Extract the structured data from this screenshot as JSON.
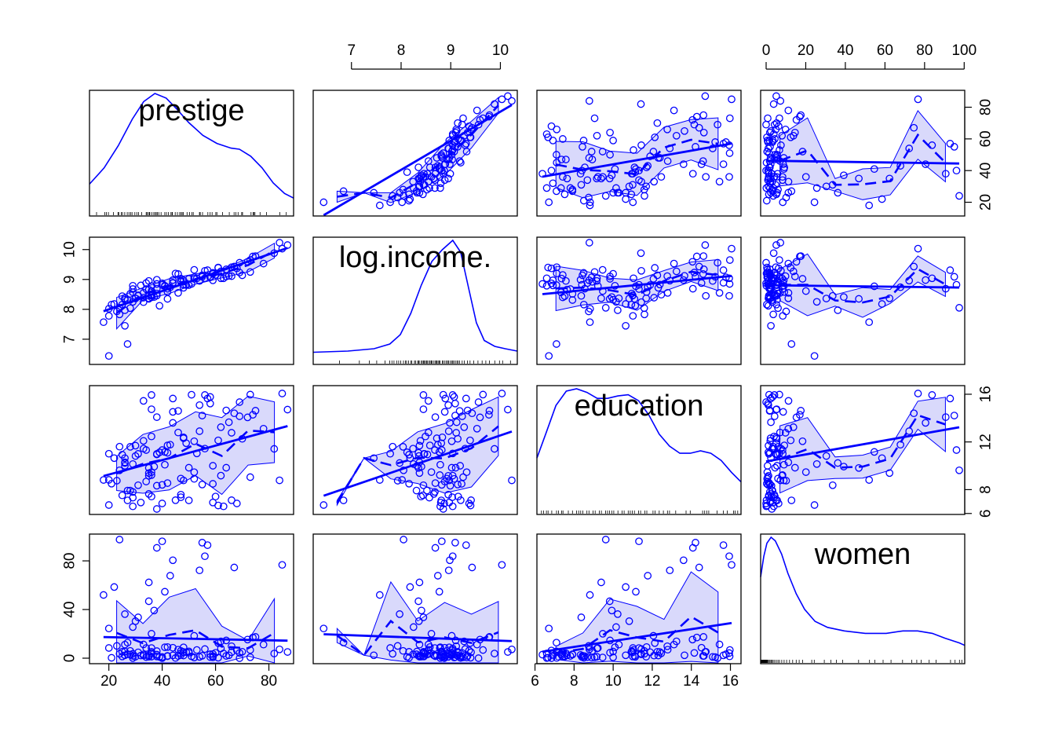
{
  "title": "",
  "variables": [
    "prestige",
    "log.income.",
    "education",
    "women"
  ],
  "colors": {
    "points": "#0000ff",
    "band_fill": "#d9d9fb",
    "axes": "#000000",
    "rug": "#000000"
  },
  "chart_data": {
    "type": "scatter-matrix",
    "ranges": {
      "prestige": [
        14.8,
        87.2
      ],
      "log.income.": [
        6.34,
        10.23
      ],
      "education": [
        6.38,
        16.26
      ],
      "women": [
        0,
        97.5
      ]
    },
    "ticks": {
      "prestige": [
        "20",
        "40",
        "60",
        "80"
      ],
      "log.income.": [
        "7",
        "8",
        "9",
        "10"
      ],
      "education": [
        "6",
        "8",
        "10",
        "12",
        "14",
        "16"
      ],
      "education_right": [
        "6",
        "8",
        "12",
        "16"
      ],
      "women": [
        "0",
        "20",
        "40",
        "60",
        "80",
        "100"
      ],
      "women_left": [
        "0",
        "40",
        "80"
      ]
    },
    "axis_layout": {
      "top": [
        null,
        "log.income.",
        null,
        "women"
      ],
      "bottom": [
        "prestige",
        null,
        "education",
        null
      ],
      "left": [
        null,
        "log.income.",
        null,
        "women"
      ],
      "right": [
        "prestige",
        null,
        "education",
        null
      ]
    },
    "density": {
      "prestige": [
        [
          14.8,
          0.22
        ],
        [
          20,
          0.36
        ],
        [
          25,
          0.55
        ],
        [
          30,
          0.78
        ],
        [
          34,
          0.93
        ],
        [
          38,
          1.0
        ],
        [
          42,
          0.96
        ],
        [
          46,
          0.86
        ],
        [
          50,
          0.75
        ],
        [
          55,
          0.64
        ],
        [
          60,
          0.57
        ],
        [
          65,
          0.53
        ],
        [
          68,
          0.52
        ],
        [
          72,
          0.46
        ],
        [
          76,
          0.36
        ],
        [
          80,
          0.23
        ],
        [
          84,
          0.14
        ],
        [
          87.2,
          0.1
        ]
      ],
      "log.income.": [
        [
          6.34,
          0.05
        ],
        [
          7,
          0.06
        ],
        [
          7.5,
          0.08
        ],
        [
          7.8,
          0.12
        ],
        [
          8.0,
          0.2
        ],
        [
          8.2,
          0.38
        ],
        [
          8.4,
          0.62
        ],
        [
          8.6,
          0.82
        ],
        [
          8.8,
          0.92
        ],
        [
          9.0,
          1.0
        ],
        [
          9.15,
          0.9
        ],
        [
          9.3,
          0.6
        ],
        [
          9.45,
          0.3
        ],
        [
          9.6,
          0.15
        ],
        [
          9.8,
          0.1
        ],
        [
          10.0,
          0.08
        ],
        [
          10.23,
          0.06
        ]
      ],
      "education": [
        [
          6.38,
          0.42
        ],
        [
          6.8,
          0.62
        ],
        [
          7.3,
          0.86
        ],
        [
          7.8,
          0.98
        ],
        [
          8.3,
          1.0
        ],
        [
          8.8,
          0.97
        ],
        [
          9.3,
          0.92
        ],
        [
          9.8,
          0.92
        ],
        [
          10.3,
          0.94
        ],
        [
          10.8,
          0.95
        ],
        [
          11.3,
          0.9
        ],
        [
          11.8,
          0.78
        ],
        [
          12.3,
          0.62
        ],
        [
          12.8,
          0.52
        ],
        [
          13.3,
          0.46
        ],
        [
          13.8,
          0.46
        ],
        [
          14.3,
          0.48
        ],
        [
          14.8,
          0.46
        ],
        [
          15.3,
          0.4
        ],
        [
          15.8,
          0.3
        ],
        [
          16.26,
          0.22
        ]
      ],
      "women": [
        [
          0,
          0.67
        ],
        [
          1.5,
          0.84
        ],
        [
          3,
          0.95
        ],
        [
          5,
          1.0
        ],
        [
          7,
          0.97
        ],
        [
          10,
          0.86
        ],
        [
          13,
          0.7
        ],
        [
          17,
          0.53
        ],
        [
          21,
          0.4
        ],
        [
          26,
          0.3
        ],
        [
          32,
          0.25
        ],
        [
          40,
          0.22
        ],
        [
          50,
          0.2
        ],
        [
          60,
          0.2
        ],
        [
          68,
          0.22
        ],
        [
          75,
          0.22
        ],
        [
          82,
          0.2
        ],
        [
          88,
          0.16
        ],
        [
          95,
          0.12
        ],
        [
          97.5,
          0.1
        ]
      ]
    },
    "rug": {
      "prestige": [
        14.8,
        17.3,
        20.2,
        20.8,
        21.5,
        23.3,
        24.9,
        25.2,
        26.1,
        26.5,
        27.3,
        28.2,
        28.8,
        29.4,
        29.9,
        30.9,
        31.6,
        32.2,
        33.3,
        34.9,
        35.2,
        35.7,
        36.1,
        36.2,
        36.9,
        37.6,
        38.1,
        38.5,
        38.9,
        39.4,
        40.2,
        41.5,
        42.1,
        42.8,
        43.7,
        44.1,
        44.2,
        45.2,
        46.0,
        46.8,
        47.3,
        47.7,
        48.1,
        49.4,
        50.3,
        51.1,
        51.6,
        53.8,
        54.1,
        54.9,
        56.8,
        57.6,
        58.3,
        59.6,
        60.0,
        62.0,
        64.4,
        66.1,
        66.7,
        67.5,
        68.8,
        69.1,
        72.1,
        72.8,
        73.1,
        73.5,
        75.3,
        77.6,
        82.3,
        84.6,
        87.2
      ],
      "log.income.": [
        6.34,
        6.84,
        7.22,
        7.41,
        7.55,
        7.71,
        7.8,
        7.84,
        7.88,
        7.93,
        7.97,
        8.01,
        8.06,
        8.1,
        8.12,
        8.16,
        8.2,
        8.22,
        8.27,
        8.29,
        8.33,
        8.35,
        8.36,
        8.4,
        8.42,
        8.44,
        8.46,
        8.48,
        8.5,
        8.52,
        8.55,
        8.57,
        8.59,
        8.6,
        8.63,
        8.66,
        8.68,
        8.7,
        8.72,
        8.74,
        8.76,
        8.8,
        8.82,
        8.85,
        8.88,
        8.9,
        8.92,
        8.95,
        8.98,
        9.0,
        9.02,
        9.05,
        9.08,
        9.1,
        9.13,
        9.18,
        9.22,
        9.28,
        9.33,
        9.4,
        9.48,
        9.56,
        9.63,
        9.7,
        9.8,
        9.89,
        9.95,
        10.1,
        10.23
      ],
      "education": [
        6.38,
        6.6,
        6.7,
        6.84,
        6.92,
        7.1,
        7.33,
        7.42,
        7.58,
        7.64,
        7.9,
        8.1,
        8.3,
        8.4,
        8.5,
        8.6,
        8.8,
        8.9,
        9.1,
        9.2,
        9.4,
        9.5,
        9.7,
        9.8,
        9.9,
        10.0,
        10.1,
        10.3,
        10.5,
        10.6,
        10.8,
        10.9,
        11.0,
        11.1,
        11.3,
        11.4,
        11.6,
        11.7,
        12.0,
        12.1,
        12.3,
        12.5,
        12.7,
        12.8,
        13.1,
        13.6,
        13.8,
        14.4,
        14.5,
        14.6,
        14.7,
        15.1,
        15.4,
        15.6,
        15.9,
        15.97,
        16.1,
        16.26
      ],
      "women": [
        0,
        0.3,
        0.5,
        0.6,
        0.7,
        0.9,
        1.2,
        1.4,
        1.6,
        1.9,
        2.1,
        2.4,
        2.7,
        3.0,
        3.2,
        3.6,
        4.1,
        4.5,
        5.0,
        5.5,
        6.0,
        6.7,
        7.5,
        8.3,
        9.0,
        10.1,
        11.2,
        12.4,
        13.8,
        15.3,
        17.0,
        18.4,
        20.1,
        24.4,
        25.6,
        30.4,
        33.6,
        36.2,
        39.2,
        46.8,
        52.0,
        54.6,
        58.5,
        62.3,
        67.8,
        72.2,
        74.6,
        76.7,
        80.5,
        83.8,
        90.7,
        92.9,
        95.0,
        96.1,
        97.5
      ]
    },
    "points": {
      "prestige": [
        78,
        70,
        66,
        82,
        75,
        44,
        54,
        33,
        44,
        64,
        69,
        58,
        87,
        69,
        65,
        42,
        73,
        36,
        51,
        58,
        36,
        48,
        39,
        46,
        48,
        33,
        34,
        26,
        36,
        30,
        24,
        20,
        25,
        38,
        46,
        28,
        42,
        38,
        31,
        33,
        29,
        30,
        26,
        37,
        35,
        18,
        41,
        22,
        35,
        43,
        54,
        67,
        85,
        44,
        56,
        38,
        57,
        55,
        40,
        24,
        31,
        20,
        36,
        52,
        74,
        72,
        62,
        61,
        26,
        23,
        41,
        36,
        56,
        53,
        47,
        26,
        49,
        50,
        47,
        29,
        27,
        28,
        38,
        35,
        32,
        29,
        42,
        25,
        35,
        34,
        59,
        52,
        52,
        21,
        40,
        29,
        45,
        61,
        73,
        40,
        36,
        59,
        55,
        47,
        38,
        59,
        63,
        60,
        66,
        50,
        68,
        84,
        62,
        48,
        27,
        64,
        20
      ],
      "log.income.": [
        9.53,
        9.14,
        9.11,
        9.88,
        9.78,
        8.89,
        8.95,
        8.55,
        8.88,
        9.34,
        9.23,
        9.09,
        10.15,
        9.56,
        9.12,
        8.35,
        9.65,
        8.45,
        8.85,
        9.07,
        8.45,
        8.83,
        8.12,
        8.55,
        8.72,
        8.24,
        8.68,
        7.45,
        8.49,
        8.37,
        7.83,
        7.78,
        8.16,
        8.46,
        9.18,
        8.04,
        8.58,
        8.53,
        8.47,
        8.39,
        8.25,
        8.36,
        7.97,
        8.41,
        8.35,
        7.57,
        8.77,
        8.18,
        8.37,
        8.74,
        8.96,
        9.43,
        10.03,
        8.98,
        9.04,
        8.69,
        9.31,
        9.09,
        8.82,
        8.05,
        8.45,
        6.44,
        8.61,
        9.02,
        9.77,
        9.59,
        9.27,
        9.39,
        8.37,
        7.93,
        8.79,
        8.78,
        9.29,
        9.04,
        8.92,
        8.32,
        8.81,
        9.02,
        8.95,
        8.57,
        8.31,
        8.52,
        8.99,
        8.66,
        8.8,
        8.68,
        8.69,
        8.44,
        8.95,
        8.88,
        9.19,
        9.32,
        9.07,
        8.16,
        8.87,
        8.79,
        9.2,
        9.4,
        9.25,
        8.82,
        8.4,
        9.22,
        9.14,
        9.03,
        8.85,
        8.97,
        9.04,
        9.15,
        9.41,
        8.81,
        9.37,
        10.23,
        9.04,
        8.97,
        6.84,
        9.1,
        8.02
      ],
      "education": [
        13.11,
        12.26,
        12.77,
        11.42,
        14.62,
        15.64,
        15.09,
        15.44,
        14.52,
        14.64,
        14.15,
        15.22,
        14.71,
        15.34,
        13.65,
        11.09,
        15.97,
        15.94,
        15.96,
        15.77,
        14.74,
        12.39,
        11.13,
        12.79,
        12.31,
        11.44,
        11.32,
        10.64,
        12.46,
        11.69,
        11.6,
        11.01,
        10.93,
        11.0,
        14.6,
        11.59,
        11.71,
        10.95,
        11.0,
        12.09,
        10.15,
        10.82,
        10.23,
        9.93,
        9.82,
        8.81,
        11.16,
        10.64,
        9.39,
        11.77,
        12.9,
        14.4,
        16.06,
        13.6,
        15.94,
        14.08,
        15.64,
        14.21,
        11.32,
        9.62,
        8.37,
        6.71,
        9.47,
        12.06,
        14.28,
        14.06,
        13.24,
        12.13,
        10.29,
        8.75,
        10.09,
        9.22,
        11.44,
        11.04,
        8.93,
        10.0,
        11.89,
        9.84,
        7.58,
        7.33,
        7.92,
        7.92,
        8.33,
        7.64,
        6.92,
        7.81,
        8.55,
        7.52,
        9.16,
        8.68,
        10.0,
        9.46,
        8.9,
        8.5,
        6.84,
        6.6,
        7.11,
        6.67,
        9.05,
        8.4,
        7.42,
        8.49,
        8.43,
        7.36,
        6.38,
        6.92,
        6.6,
        7.42,
        7.11,
        7.1,
        6.84,
        8.78,
        9.17,
        8.77,
        7.1,
        9.84,
        8.82
      ],
      "women": [
        11.2,
        5.3,
        9.8,
        3.8,
        17.5,
        2.3,
        1.1,
        11.3,
        8.6,
        1.9,
        4.3,
        0.9,
        5.1,
        0,
        2.4,
        1.9,
        6.7,
        4.2,
        1.5,
        3.2,
        5.3,
        5.1,
        1.1,
        7.0,
        2.2,
        3.1,
        8.3,
        2.4,
        4.0,
        1.2,
        3.6,
        8.4,
        5.2,
        1.4,
        1.8,
        6.0,
        9.2,
        5.8,
        4.8,
        2.1,
        25.6,
        30.4,
        36.2,
        39.2,
        46.8,
        52.0,
        54.6,
        58.5,
        62.3,
        67.8,
        72.2,
        74.6,
        76.7,
        80.5,
        83.8,
        90.7,
        92.9,
        95.0,
        96.1,
        97.5,
        33.6,
        24.4,
        20.1,
        18.4,
        17.0,
        15.3,
        13.8,
        12.4,
        11.2,
        10.1,
        9.0,
        8.3,
        7.5,
        6.7,
        6.0,
        5.5,
        5.0,
        4.5,
        4.1,
        3.6,
        3.2,
        3.0,
        2.7,
        2.4,
        2.1,
        1.9,
        1.6,
        1.4,
        1.2,
        0.9,
        0.7,
        0.6,
        0.5,
        0.3,
        0,
        0.1,
        0.2,
        0.4,
        0.8,
        1.0,
        1.3,
        1.7,
        2.0,
        2.6,
        2.9,
        3.4,
        3.9,
        4.4,
        4.9,
        5.6,
        6.3,
        7.2,
        8.0,
        8.9,
        12.8,
        14.6
      ]
    }
  }
}
